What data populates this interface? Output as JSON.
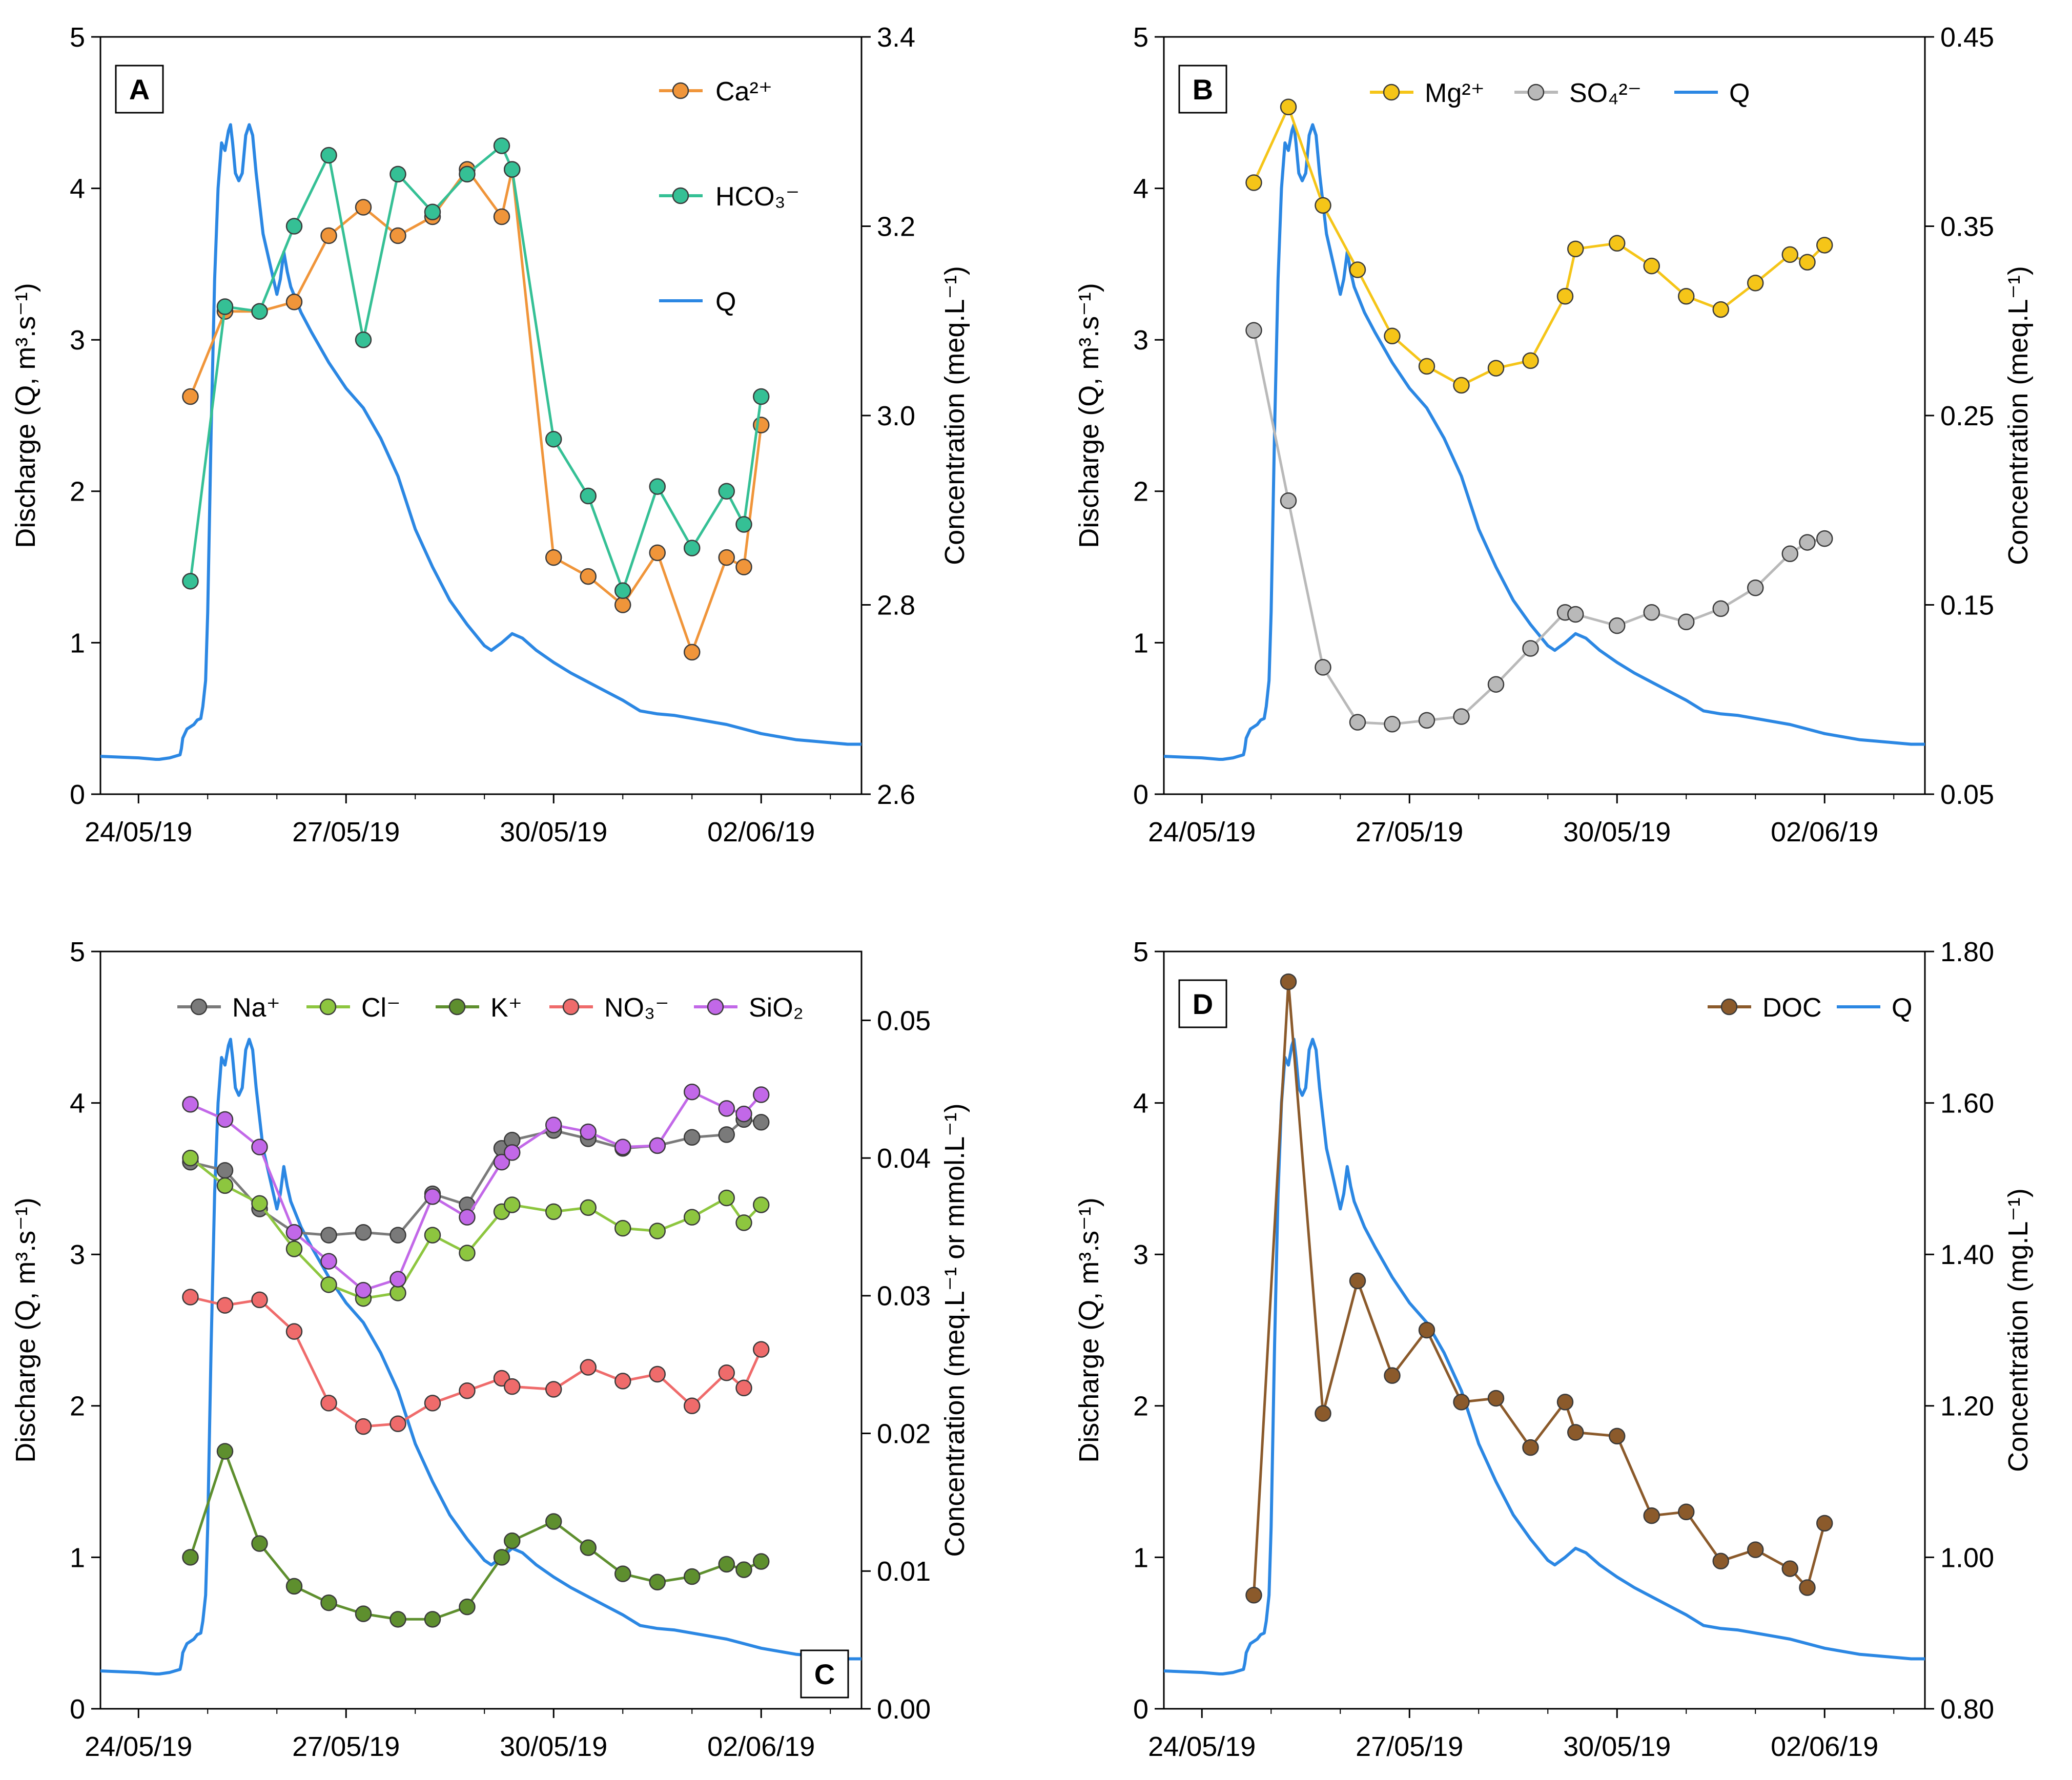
{
  "figure": {
    "x_tick_labels": [
      "24/05/19",
      "27/05/19",
      "30/05/19",
      "02/06/19"
    ],
    "x_range_days": [
      -0.55,
      10.45
    ],
    "left_axis_label": "Discharge (Q, m³.s⁻¹)",
    "left_ticks": [
      0,
      1,
      2,
      3,
      4,
      5
    ],
    "left_ylim": [
      0,
      5
    ]
  },
  "chart_data": [
    {
      "panel": "A",
      "type": "line",
      "label": "A",
      "right_axis_label": "Concentration (meq.L⁻¹)",
      "right_ylim": [
        2.6,
        3.4
      ],
      "right_ticks": [
        "2.6",
        "2.8",
        "3.0",
        "3.2",
        "3.4"
      ],
      "legend_position": "top-right",
      "series": [
        {
          "name": "Ca²⁺",
          "axis": "right",
          "color": "#f0953a",
          "marker": true,
          "x": [
            0.75,
            1.25,
            1.75,
            2.25,
            2.75,
            3.25,
            3.75,
            4.25,
            4.75,
            5.25,
            5.4,
            6.0,
            6.5,
            7.0,
            7.5,
            8.0,
            8.5,
            8.75,
            9.0
          ],
          "values": [
            3.02,
            3.11,
            3.11,
            3.12,
            3.19,
            3.22,
            3.19,
            3.21,
            3.26,
            3.21,
            3.26,
            2.85,
            2.83,
            2.8,
            2.855,
            2.75,
            2.85,
            2.84,
            2.99
          ]
        },
        {
          "name": "HCO₃⁻",
          "axis": "right",
          "color": "#35c095",
          "marker": true,
          "x": [
            0.75,
            1.25,
            1.75,
            2.25,
            2.75,
            3.25,
            3.75,
            4.25,
            4.75,
            5.25,
            5.4,
            6.0,
            6.5,
            7.0,
            7.5,
            8.0,
            8.5,
            8.75,
            9.0
          ],
          "values": [
            2.825,
            3.115,
            3.11,
            3.2,
            3.275,
            3.08,
            3.255,
            3.215,
            3.255,
            3.285,
            3.26,
            2.975,
            2.915,
            2.815,
            2.925,
            2.86,
            2.92,
            2.885,
            3.02
          ]
        },
        {
          "name": "Q",
          "axis": "left",
          "color": "#2b87e3",
          "marker": false,
          "role": "discharge"
        }
      ]
    },
    {
      "panel": "B",
      "type": "line",
      "label": "B",
      "right_axis_label": "Concentration (meq.L⁻¹)",
      "right_ylim": [
        0.05,
        0.45
      ],
      "right_ticks": [
        "0.05",
        "0.15",
        "0.25",
        "0.35",
        "0.45"
      ],
      "legend_position": "top",
      "series": [
        {
          "name": "Mg²⁺",
          "axis": "right",
          "color": "#f5c518",
          "marker": true,
          "x": [
            0.75,
            1.25,
            1.75,
            2.25,
            2.75,
            3.25,
            3.75,
            4.25,
            4.75,
            5.25,
            5.4,
            6.0,
            6.5,
            7.0,
            7.5,
            8.0,
            8.5,
            8.75,
            9.0
          ],
          "values": [
            0.373,
            0.413,
            0.361,
            0.327,
            0.292,
            0.276,
            0.266,
            0.275,
            0.279,
            0.313,
            0.338,
            0.341,
            0.329,
            0.313,
            0.306,
            0.32,
            0.335,
            0.331,
            0.34
          ]
        },
        {
          "name": "SO₄²⁻",
          "axis": "right",
          "color": "#b9b9b9",
          "marker": true,
          "x": [
            0.75,
            1.25,
            1.75,
            2.25,
            2.75,
            3.25,
            3.75,
            4.25,
            4.75,
            5.25,
            5.4,
            6.0,
            6.5,
            7.0,
            7.5,
            8.0,
            8.5,
            8.75,
            9.0
          ],
          "values": [
            0.295,
            0.205,
            0.117,
            0.088,
            0.087,
            0.089,
            0.091,
            0.108,
            0.127,
            0.146,
            0.145,
            0.139,
            0.146,
            0.141,
            0.148,
            0.159,
            0.177,
            0.183,
            0.185
          ]
        },
        {
          "name": "Q",
          "axis": "left",
          "color": "#2b87e3",
          "marker": false,
          "role": "discharge"
        }
      ]
    },
    {
      "panel": "C",
      "type": "line",
      "label": "C",
      "right_axis_label": "Concentration (meq.L⁻¹ or mmol.L⁻¹)",
      "right_ylim": [
        0.0,
        0.055
      ],
      "right_ticks": [
        "0.00",
        "0.01",
        "0.02",
        "0.03",
        "0.04",
        "0.05"
      ],
      "legend_position": "top",
      "series": [
        {
          "name": "Na⁺",
          "axis": "right",
          "color": "#7a7a7a",
          "marker": true,
          "x": [
            0.75,
            1.25,
            1.75,
            2.25,
            2.75,
            3.25,
            3.75,
            4.25,
            4.75,
            5.25,
            5.4,
            6.0,
            6.5,
            7.0,
            7.5,
            8.0,
            8.5,
            8.75,
            9.0
          ],
          "values": [
            0.0397,
            0.0391,
            0.0363,
            0.0346,
            0.0344,
            0.0346,
            0.0344,
            0.0374,
            0.0366,
            0.0407,
            0.0413,
            0.042,
            0.0414,
            0.0407,
            0.0409,
            0.0415,
            0.0417,
            0.0428,
            0.0426
          ]
        },
        {
          "name": "Cl⁻",
          "axis": "right",
          "color": "#8dc63f",
          "marker": true,
          "x": [
            0.75,
            1.25,
            1.75,
            2.25,
            2.75,
            3.25,
            3.75,
            4.25,
            4.75,
            5.25,
            5.4,
            6.0,
            6.5,
            7.0,
            7.5,
            8.0,
            8.5,
            8.75,
            9.0
          ],
          "values": [
            0.04,
            0.038,
            0.0367,
            0.0334,
            0.0308,
            0.0298,
            0.0302,
            0.0344,
            0.0331,
            0.0361,
            0.0366,
            0.0361,
            0.0364,
            0.0349,
            0.0347,
            0.0357,
            0.0371,
            0.0353,
            0.0366
          ]
        },
        {
          "name": "K⁺",
          "axis": "right",
          "color": "#5e8f2e",
          "marker": true,
          "x": [
            0.75,
            1.25,
            1.75,
            2.25,
            2.75,
            3.25,
            3.75,
            4.25,
            4.75,
            5.25,
            5.4,
            6.0,
            6.5,
            7.0,
            7.5,
            8.0,
            8.5,
            8.75,
            9.0
          ],
          "values": [
            0.011,
            0.0187,
            0.012,
            0.0089,
            0.0077,
            0.0069,
            0.0065,
            0.0065,
            0.0074,
            0.011,
            0.0122,
            0.0136,
            0.0117,
            0.0098,
            0.0092,
            0.0096,
            0.0105,
            0.0101,
            0.0107
          ]
        },
        {
          "name": "NO₃⁻",
          "axis": "right",
          "color": "#ef6b6b",
          "marker": true,
          "x": [
            0.75,
            1.25,
            1.75,
            2.25,
            2.75,
            3.25,
            3.75,
            4.25,
            4.75,
            5.25,
            5.4,
            6.0,
            6.5,
            7.0,
            7.5,
            8.0,
            8.5,
            8.75,
            9.0
          ],
          "values": [
            0.0299,
            0.0293,
            0.0297,
            0.0274,
            0.0222,
            0.0205,
            0.0207,
            0.0222,
            0.0231,
            0.024,
            0.0234,
            0.0232,
            0.0248,
            0.0238,
            0.0243,
            0.022,
            0.0244,
            0.0233,
            0.0261
          ]
        },
        {
          "name": "SiO₂",
          "axis": "right",
          "color": "#c268e8",
          "marker": true,
          "x": [
            0.75,
            1.25,
            1.75,
            2.25,
            2.75,
            3.25,
            3.75,
            4.25,
            4.75,
            5.25,
            5.4,
            6.0,
            6.5,
            7.0,
            7.5,
            8.0,
            8.5,
            8.75,
            9.0
          ],
          "values": [
            0.0439,
            0.0428,
            0.0408,
            0.0346,
            0.0325,
            0.0304,
            0.0312,
            0.0372,
            0.0357,
            0.0397,
            0.0404,
            0.0424,
            0.0419,
            0.0408,
            0.0409,
            0.0448,
            0.0436,
            0.0432,
            0.0446
          ]
        },
        {
          "name": "Q",
          "axis": "left",
          "color": "#2b87e3",
          "marker": false,
          "role": "discharge",
          "in_legend": false
        }
      ]
    },
    {
      "panel": "D",
      "type": "line",
      "label": "D",
      "right_axis_label": "Concentration (mg.L⁻¹)",
      "right_ylim": [
        0.8,
        1.8
      ],
      "right_ticks": [
        "0.80",
        "1.00",
        "1.20",
        "1.40",
        "1.60",
        "1.80"
      ],
      "legend_position": "top-right",
      "series": [
        {
          "name": "DOC",
          "axis": "right",
          "color": "#8b5a2b",
          "marker": true,
          "x": [
            0.75,
            1.25,
            1.75,
            2.25,
            2.75,
            3.25,
            3.75,
            4.25,
            4.75,
            5.25,
            5.4,
            6.0,
            6.5,
            7.0,
            7.5,
            8.0,
            8.5,
            8.75,
            9.0
          ],
          "values": [
            0.95,
            1.76,
            1.19,
            1.365,
            1.24,
            1.3,
            1.205,
            1.21,
            1.145,
            1.205,
            1.165,
            1.16,
            1.055,
            1.06,
            0.995,
            1.01,
            0.985,
            0.96,
            1.045
          ]
        },
        {
          "name": "Q",
          "axis": "left",
          "color": "#2b87e3",
          "marker": false,
          "role": "discharge"
        }
      ]
    }
  ],
  "discharge_q": {
    "x": [
      -0.55,
      0.0,
      0.25,
      0.3,
      0.45,
      0.6,
      0.62,
      0.64,
      0.7,
      0.8,
      0.85,
      0.9,
      0.93,
      0.97,
      1.0,
      1.05,
      1.1,
      1.15,
      1.2,
      1.25,
      1.3,
      1.33,
      1.36,
      1.4,
      1.45,
      1.5,
      1.55,
      1.6,
      1.65,
      1.7,
      1.75,
      1.8,
      1.9,
      2.0,
      2.05,
      2.1,
      2.15,
      2.2,
      2.35,
      2.5,
      2.75,
      3.0,
      3.25,
      3.5,
      3.75,
      4.0,
      4.25,
      4.5,
      4.75,
      5.0,
      5.1,
      5.25,
      5.4,
      5.55,
      5.75,
      6.0,
      6.25,
      6.5,
      6.75,
      7.0,
      7.25,
      7.5,
      7.75,
      8.0,
      8.25,
      8.5,
      8.75,
      9.0,
      9.25,
      9.5,
      9.75,
      10.0,
      10.25,
      10.45
    ],
    "values": [
      0.25,
      0.24,
      0.23,
      0.23,
      0.24,
      0.26,
      0.3,
      0.37,
      0.43,
      0.46,
      0.49,
      0.5,
      0.58,
      0.75,
      1.2,
      2.4,
      3.4,
      4.0,
      4.3,
      4.25,
      4.38,
      4.42,
      4.3,
      4.1,
      4.05,
      4.1,
      4.35,
      4.42,
      4.35,
      4.1,
      3.9,
      3.7,
      3.5,
      3.3,
      3.4,
      3.58,
      3.45,
      3.35,
      3.18,
      3.05,
      2.85,
      2.68,
      2.55,
      2.35,
      2.1,
      1.75,
      1.5,
      1.28,
      1.12,
      0.98,
      0.95,
      1.0,
      1.06,
      1.03,
      0.95,
      0.87,
      0.8,
      0.74,
      0.68,
      0.62,
      0.55,
      0.53,
      0.52,
      0.5,
      0.48,
      0.46,
      0.43,
      0.4,
      0.38,
      0.36,
      0.35,
      0.34,
      0.33,
      0.33
    ]
  }
}
